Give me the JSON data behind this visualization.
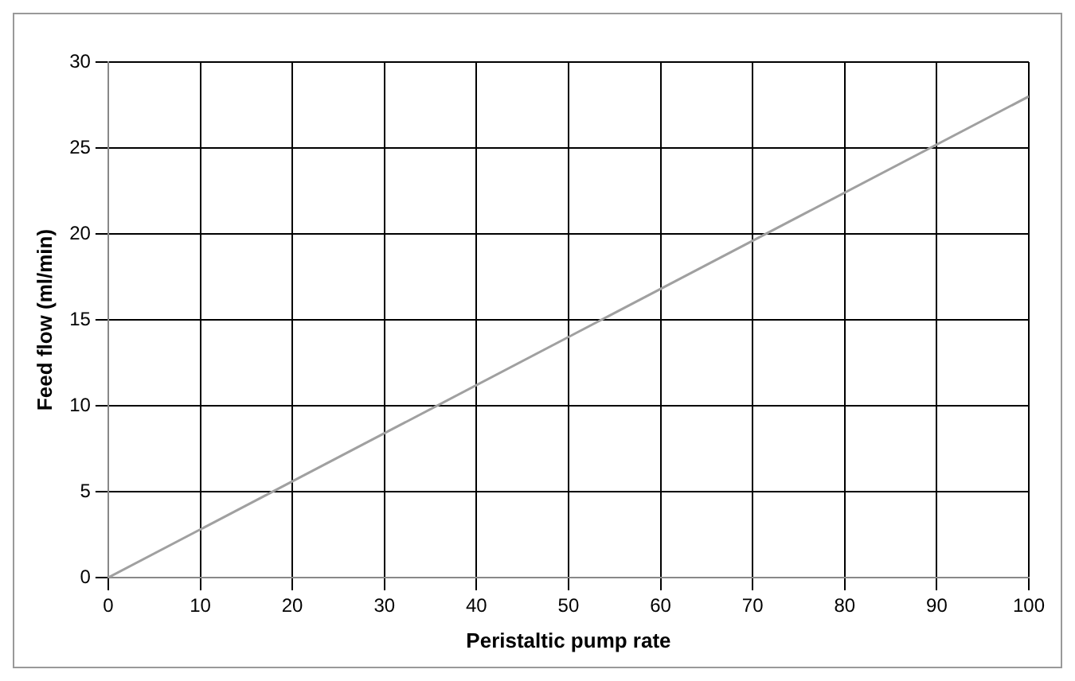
{
  "chart_data": {
    "type": "line",
    "xlabel": "Peristaltic pump rate",
    "ylabel": "Feed flow (ml/min)",
    "x": [
      0,
      100
    ],
    "series": [
      {
        "color": "#a0a0a0",
        "values": [
          0,
          28
        ]
      }
    ],
    "xlim": [
      0,
      100
    ],
    "xticks": [
      0,
      10,
      20,
      30,
      40,
      50,
      60,
      70,
      80,
      90,
      100
    ],
    "ylim": [
      0,
      30
    ],
    "yticks": [
      0,
      5,
      10,
      15,
      20,
      25,
      30
    ],
    "grid": true,
    "legend": false,
    "marker": "none",
    "line_style": "solid"
  }
}
